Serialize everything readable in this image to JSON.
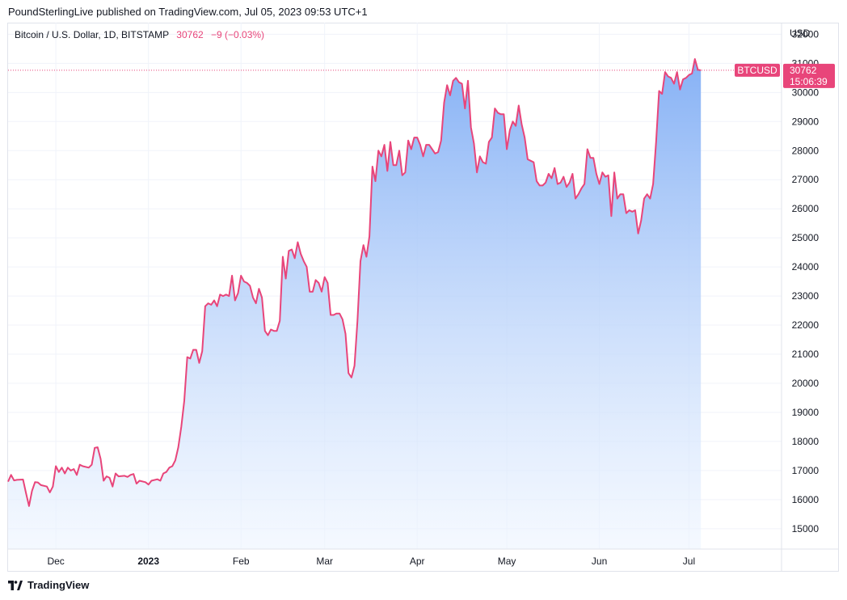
{
  "header": {
    "publisher_text": "PoundSterlingLive published on TradingView.com, Jul 05, 2023 09:53 UTC+1"
  },
  "legend": {
    "symbol_description": "Bitcoin / U.S. Dollar, 1D, BITSTAMP",
    "last_price": "30762",
    "change": "−9 (−0.03%)"
  },
  "price_axis": {
    "currency": "USD"
  },
  "price_tag": {
    "symbol": "BTCUSD",
    "price": "30762",
    "countdown": "15:06:39"
  },
  "footer": {
    "brand": "TradingView"
  },
  "colors": {
    "line": "#e8457a",
    "area_top": "#86b1f5",
    "area_bottom": "#eef5ff",
    "grid": "#f0f3fa",
    "tag_bg": "#e8457a"
  },
  "chart_data": {
    "type": "area",
    "xlabel": "",
    "ylabel": "",
    "grid": true,
    "ylim": [
      14300,
      32400
    ],
    "y_ticks": [
      15000,
      16000,
      17000,
      18000,
      19000,
      20000,
      21000,
      22000,
      23000,
      24000,
      25000,
      26000,
      27000,
      28000,
      29000,
      30000,
      31000,
      32000
    ],
    "x_ticks": [
      {
        "label": "Dec",
        "date": "2022-12-01"
      },
      {
        "label": "2023",
        "date": "2023-01-01"
      },
      {
        "label": "Feb",
        "date": "2023-02-01"
      },
      {
        "label": "Mar",
        "date": "2023-03-01"
      },
      {
        "label": "Apr",
        "date": "2023-04-01"
      },
      {
        "label": "May",
        "date": "2023-05-01"
      },
      {
        "label": "Jun",
        "date": "2023-06-01"
      },
      {
        "label": "Jul",
        "date": "2023-07-01"
      }
    ],
    "x_range": [
      "2022-11-15",
      "2023-08-01"
    ],
    "series": [
      {
        "values": [
          [
            "2022-11-15",
            16620
          ],
          [
            "2022-11-16",
            16850
          ],
          [
            "2022-11-17",
            16660
          ],
          [
            "2022-11-18",
            16680
          ],
          [
            "2022-11-20",
            16690
          ],
          [
            "2022-11-21",
            16220
          ],
          [
            "2022-11-22",
            15780
          ],
          [
            "2022-11-23",
            16300
          ],
          [
            "2022-11-24",
            16600
          ],
          [
            "2022-11-25",
            16590
          ],
          [
            "2022-11-26",
            16500
          ],
          [
            "2022-11-28",
            16450
          ],
          [
            "2022-11-29",
            16250
          ],
          [
            "2022-11-30",
            16450
          ],
          [
            "2022-12-01",
            17150
          ],
          [
            "2022-12-02",
            16950
          ],
          [
            "2022-12-03",
            17100
          ],
          [
            "2022-12-04",
            16900
          ],
          [
            "2022-12-05",
            17100
          ],
          [
            "2022-12-06",
            17000
          ],
          [
            "2022-12-07",
            17050
          ],
          [
            "2022-12-08",
            16850
          ],
          [
            "2022-12-09",
            17200
          ],
          [
            "2022-12-10",
            17150
          ],
          [
            "2022-12-12",
            17100
          ],
          [
            "2022-12-13",
            17200
          ],
          [
            "2022-12-14",
            17780
          ],
          [
            "2022-12-15",
            17800
          ],
          [
            "2022-12-16",
            17400
          ],
          [
            "2022-12-17",
            16650
          ],
          [
            "2022-12-18",
            16800
          ],
          [
            "2022-12-19",
            16750
          ],
          [
            "2022-12-20",
            16450
          ],
          [
            "2022-12-21",
            16900
          ],
          [
            "2022-12-22",
            16800
          ],
          [
            "2022-12-24",
            16820
          ],
          [
            "2022-12-25",
            16780
          ],
          [
            "2022-12-26",
            16850
          ],
          [
            "2022-12-27",
            16880
          ],
          [
            "2022-12-28",
            16550
          ],
          [
            "2022-12-29",
            16650
          ],
          [
            "2022-12-31",
            16600
          ],
          [
            "2023-01-01",
            16520
          ],
          [
            "2023-01-02",
            16650
          ],
          [
            "2023-01-04",
            16700
          ],
          [
            "2023-01-05",
            16650
          ],
          [
            "2023-01-06",
            16900
          ],
          [
            "2023-01-07",
            16950
          ],
          [
            "2023-01-08",
            17100
          ],
          [
            "2023-01-09",
            17150
          ],
          [
            "2023-01-10",
            17350
          ],
          [
            "2023-01-11",
            17800
          ],
          [
            "2023-01-12",
            18500
          ],
          [
            "2023-01-13",
            19400
          ],
          [
            "2023-01-14",
            20900
          ],
          [
            "2023-01-15",
            20850
          ],
          [
            "2023-01-16",
            21150
          ],
          [
            "2023-01-17",
            21150
          ],
          [
            "2023-01-18",
            20700
          ],
          [
            "2023-01-19",
            21100
          ],
          [
            "2023-01-20",
            22650
          ],
          [
            "2023-01-21",
            22750
          ],
          [
            "2023-01-22",
            22700
          ],
          [
            "2023-01-23",
            22850
          ],
          [
            "2023-01-24",
            22650
          ],
          [
            "2023-01-25",
            23050
          ],
          [
            "2023-01-26",
            23000
          ],
          [
            "2023-01-27",
            23050
          ],
          [
            "2023-01-28",
            23000
          ],
          [
            "2023-01-29",
            23700
          ],
          [
            "2023-01-30",
            22850
          ],
          [
            "2023-01-31",
            23100
          ],
          [
            "2023-02-01",
            23700
          ],
          [
            "2023-02-02",
            23500
          ],
          [
            "2023-02-03",
            23450
          ],
          [
            "2023-02-04",
            23350
          ],
          [
            "2023-02-05",
            22950
          ],
          [
            "2023-02-06",
            22750
          ],
          [
            "2023-02-07",
            23250
          ],
          [
            "2023-02-08",
            22950
          ],
          [
            "2023-02-09",
            21800
          ],
          [
            "2023-02-10",
            21650
          ],
          [
            "2023-02-11",
            21850
          ],
          [
            "2023-02-12",
            21800
          ],
          [
            "2023-02-13",
            21800
          ],
          [
            "2023-02-14",
            22150
          ],
          [
            "2023-02-15",
            24350
          ],
          [
            "2023-02-16",
            23600
          ],
          [
            "2023-02-17",
            24550
          ],
          [
            "2023-02-18",
            24600
          ],
          [
            "2023-02-19",
            24300
          ],
          [
            "2023-02-20",
            24850
          ],
          [
            "2023-02-21",
            24450
          ],
          [
            "2023-02-22",
            24200
          ],
          [
            "2023-02-23",
            24000
          ],
          [
            "2023-02-24",
            23150
          ],
          [
            "2023-02-25",
            23150
          ],
          [
            "2023-02-26",
            23550
          ],
          [
            "2023-02-27",
            23450
          ],
          [
            "2023-02-28",
            23150
          ],
          [
            "2023-03-01",
            23650
          ],
          [
            "2023-03-02",
            23450
          ],
          [
            "2023-03-03",
            22350
          ],
          [
            "2023-03-04",
            22350
          ],
          [
            "2023-03-05",
            22400
          ],
          [
            "2023-03-06",
            22400
          ],
          [
            "2023-03-07",
            22200
          ],
          [
            "2023-03-08",
            21700
          ],
          [
            "2023-03-09",
            20350
          ],
          [
            "2023-03-10",
            20200
          ],
          [
            "2023-03-11",
            20600
          ],
          [
            "2023-03-12",
            22150
          ],
          [
            "2023-03-13",
            24200
          ],
          [
            "2023-03-14",
            24750
          ],
          [
            "2023-03-15",
            24350
          ],
          [
            "2023-03-16",
            25050
          ],
          [
            "2023-03-17",
            27450
          ],
          [
            "2023-03-18",
            26950
          ],
          [
            "2023-03-19",
            28000
          ],
          [
            "2023-03-20",
            27800
          ],
          [
            "2023-03-21",
            28200
          ],
          [
            "2023-03-22",
            27300
          ],
          [
            "2023-03-23",
            28300
          ],
          [
            "2023-03-24",
            27500
          ],
          [
            "2023-03-25",
            27500
          ],
          [
            "2023-03-26",
            28000
          ],
          [
            "2023-03-27",
            27150
          ],
          [
            "2023-03-28",
            27250
          ],
          [
            "2023-03-29",
            28350
          ],
          [
            "2023-03-30",
            28050
          ],
          [
            "2023-03-31",
            28450
          ],
          [
            "2023-04-01",
            28450
          ],
          [
            "2023-04-02",
            28200
          ],
          [
            "2023-04-03",
            27800
          ],
          [
            "2023-04-04",
            28200
          ],
          [
            "2023-04-05",
            28200
          ],
          [
            "2023-04-06",
            28050
          ],
          [
            "2023-04-07",
            27900
          ],
          [
            "2023-04-08",
            27950
          ],
          [
            "2023-04-09",
            28350
          ],
          [
            "2023-04-10",
            29650
          ],
          [
            "2023-04-11",
            30250
          ],
          [
            "2023-04-12",
            29900
          ],
          [
            "2023-04-13",
            30400
          ],
          [
            "2023-04-14",
            30500
          ],
          [
            "2023-04-15",
            30350
          ],
          [
            "2023-04-16",
            30300
          ],
          [
            "2023-04-17",
            29450
          ],
          [
            "2023-04-18",
            30400
          ],
          [
            "2023-04-19",
            28800
          ],
          [
            "2023-04-20",
            28250
          ],
          [
            "2023-04-21",
            27250
          ],
          [
            "2023-04-22",
            27800
          ],
          [
            "2023-04-23",
            27600
          ],
          [
            "2023-04-24",
            27550
          ],
          [
            "2023-04-25",
            28300
          ],
          [
            "2023-04-26",
            28450
          ],
          [
            "2023-04-27",
            29450
          ],
          [
            "2023-04-28",
            29300
          ],
          [
            "2023-04-29",
            29250
          ],
          [
            "2023-04-30",
            29250
          ],
          [
            "2023-05-01",
            28050
          ],
          [
            "2023-05-02",
            28700
          ],
          [
            "2023-05-03",
            29000
          ],
          [
            "2023-05-04",
            28850
          ],
          [
            "2023-05-05",
            29550
          ],
          [
            "2023-05-06",
            28900
          ],
          [
            "2023-05-07",
            28450
          ],
          [
            "2023-05-08",
            27700
          ],
          [
            "2023-05-09",
            27650
          ],
          [
            "2023-05-10",
            27600
          ],
          [
            "2023-05-11",
            26950
          ],
          [
            "2023-05-12",
            26800
          ],
          [
            "2023-05-13",
            26800
          ],
          [
            "2023-05-14",
            26900
          ],
          [
            "2023-05-15",
            27200
          ],
          [
            "2023-05-16",
            27050
          ],
          [
            "2023-05-17",
            27400
          ],
          [
            "2023-05-18",
            26850
          ],
          [
            "2023-05-19",
            26900
          ],
          [
            "2023-05-20",
            27100
          ],
          [
            "2023-05-21",
            26750
          ],
          [
            "2023-05-22",
            26900
          ],
          [
            "2023-05-23",
            27200
          ],
          [
            "2023-05-24",
            26350
          ],
          [
            "2023-05-25",
            26500
          ],
          [
            "2023-05-26",
            26700
          ],
          [
            "2023-05-27",
            26850
          ],
          [
            "2023-05-28",
            28050
          ],
          [
            "2023-05-29",
            27750
          ],
          [
            "2023-05-30",
            27750
          ],
          [
            "2023-05-31",
            27200
          ],
          [
            "2023-06-01",
            26850
          ],
          [
            "2023-06-02",
            27250
          ],
          [
            "2023-06-03",
            27100
          ],
          [
            "2023-06-04",
            27150
          ],
          [
            "2023-06-05",
            25750
          ],
          [
            "2023-06-06",
            27250
          ],
          [
            "2023-06-07",
            26350
          ],
          [
            "2023-06-08",
            26500
          ],
          [
            "2023-06-09",
            26500
          ],
          [
            "2023-06-10",
            25850
          ],
          [
            "2023-06-11",
            25950
          ],
          [
            "2023-06-12",
            25900
          ],
          [
            "2023-06-13",
            25950
          ],
          [
            "2023-06-14",
            25150
          ],
          [
            "2023-06-15",
            25600
          ],
          [
            "2023-06-16",
            26350
          ],
          [
            "2023-06-17",
            26500
          ],
          [
            "2023-06-18",
            26350
          ],
          [
            "2023-06-19",
            26850
          ],
          [
            "2023-06-20",
            28300
          ],
          [
            "2023-06-21",
            30050
          ],
          [
            "2023-06-22",
            29950
          ],
          [
            "2023-06-23",
            30700
          ],
          [
            "2023-06-24",
            30550
          ],
          [
            "2023-06-25",
            30500
          ],
          [
            "2023-06-26",
            30300
          ],
          [
            "2023-06-27",
            30700
          ],
          [
            "2023-06-28",
            30100
          ],
          [
            "2023-06-29",
            30450
          ],
          [
            "2023-06-30",
            30500
          ],
          [
            "2023-07-01",
            30600
          ],
          [
            "2023-07-02",
            30650
          ],
          [
            "2023-07-03",
            31150
          ],
          [
            "2023-07-04",
            30780
          ],
          [
            "2023-07-05",
            30762
          ]
        ]
      }
    ],
    "last_value": 30762
  }
}
